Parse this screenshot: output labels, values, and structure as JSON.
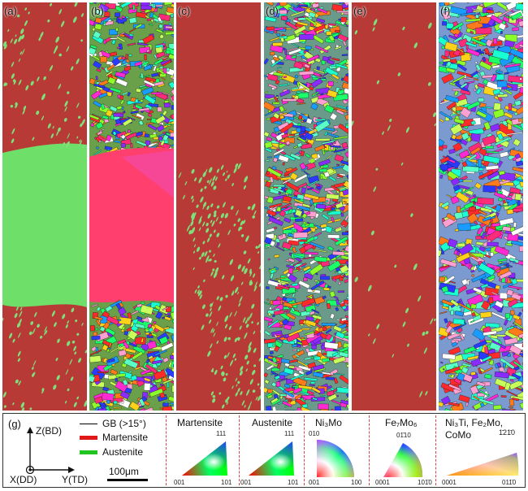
{
  "panels": [
    {
      "label": "(a)"
    },
    {
      "label": "(b)"
    },
    {
      "label": "(c)"
    },
    {
      "label": "(d)"
    },
    {
      "label": "(e)"
    },
    {
      "label": "(f)"
    }
  ],
  "legend": {
    "label": "(g)",
    "axes": {
      "z": "Z(BD)",
      "x": "X(DD)",
      "y": "Y(TD)"
    },
    "keys": [
      {
        "text": "GB (>15°)",
        "color": "#000000"
      },
      {
        "text": "Martensite",
        "color": "#e01818"
      },
      {
        "text": "Austenite",
        "color": "#22c422"
      }
    ],
    "scalebar": "100μm",
    "ipf": [
      {
        "title": "Martensite",
        "top": "111",
        "left": "001",
        "right": "101"
      },
      {
        "title": "Austenite",
        "top": "111",
        "left": "001",
        "right": "101"
      },
      {
        "title": "Ni₃Mo",
        "top": "010",
        "left": "001",
        "right": "100"
      },
      {
        "title": "Fe₇Mo₆",
        "top": "01̄10",
        "left": "0001",
        "right": "101̄0"
      },
      {
        "title": "Ni₃Ti, Fe₂Mo, CoMo",
        "top": "1̄21̄0",
        "left": "0001",
        "right": "011̄0"
      }
    ]
  },
  "colors": {
    "martensite_map": "#b83a36",
    "austenite_map": "#6ee06a",
    "gb": "#000000"
  }
}
